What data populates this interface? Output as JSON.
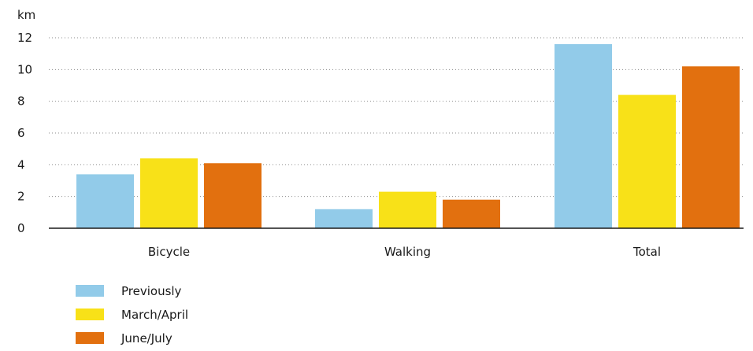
{
  "chart_data": {
    "type": "bar",
    "ylabel": "km",
    "ylim": [
      0,
      12
    ],
    "yticks": [
      0,
      2,
      4,
      6,
      8,
      10,
      12
    ],
    "grid": true,
    "legend_position": "bottom-left",
    "categories": [
      "Bicycle",
      "Walking",
      "Total"
    ],
    "series": [
      {
        "name": "Previously",
        "color": "#92cbe9",
        "values": [
          3.4,
          1.2,
          11.6
        ]
      },
      {
        "name": "March/April",
        "color": "#f8e118",
        "values": [
          4.4,
          2.3,
          8.4
        ]
      },
      {
        "name": "June/July",
        "color": "#e2700f",
        "values": [
          4.1,
          1.8,
          10.2
        ]
      }
    ]
  }
}
